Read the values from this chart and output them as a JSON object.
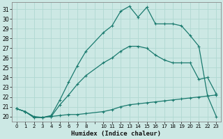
{
  "xlabel": "Humidex (Indice chaleur)",
  "bg_color": "#cce8e4",
  "grid_color": "#b0d8d2",
  "line_color": "#1a7a6e",
  "xlim": [
    -0.5,
    23.5
  ],
  "ylim": [
    19.5,
    31.7
  ],
  "yticks": [
    20,
    21,
    22,
    23,
    24,
    25,
    26,
    27,
    28,
    29,
    30,
    31
  ],
  "xtick_positions": [
    0,
    1,
    2,
    3,
    4,
    5,
    6,
    7,
    8,
    9,
    10,
    11,
    12,
    13,
    14,
    15,
    16,
    17,
    18,
    19,
    20,
    21,
    22,
    23
  ],
  "xtick_labels": [
    "0",
    "1",
    "2",
    "3",
    "4",
    "5",
    "6",
    "7",
    "8",
    "",
    "10",
    "11",
    "12",
    "13",
    "14",
    "15",
    "16",
    "17",
    "18",
    "19",
    "20",
    "21",
    "22",
    "23"
  ],
  "line1_x": [
    0,
    1,
    2,
    3,
    4,
    5,
    6,
    7,
    8,
    10,
    11,
    12,
    13,
    14,
    15,
    16,
    17,
    18,
    19,
    20,
    21,
    22,
    23
  ],
  "line1_y": [
    20.8,
    20.5,
    20.0,
    19.9,
    20.0,
    20.1,
    20.2,
    20.2,
    20.3,
    20.5,
    20.7,
    21.0,
    21.2,
    21.3,
    21.4,
    21.5,
    21.6,
    21.7,
    21.8,
    21.9,
    22.0,
    22.1,
    22.2
  ],
  "line2_x": [
    0,
    1,
    2,
    3,
    4,
    5,
    6,
    7,
    8,
    10,
    11,
    12,
    13,
    14,
    15,
    16,
    17,
    18,
    19,
    20,
    21,
    22,
    23
  ],
  "line2_y": [
    20.8,
    20.5,
    19.9,
    19.9,
    20.0,
    21.2,
    22.2,
    23.3,
    24.2,
    25.5,
    26.0,
    26.7,
    27.2,
    27.2,
    27.0,
    26.3,
    25.8,
    25.5,
    25.5,
    25.5,
    23.8,
    24.0,
    22.3
  ],
  "line3_x": [
    0,
    1,
    2,
    3,
    4,
    5,
    6,
    7,
    8,
    10,
    11,
    12,
    13,
    14,
    15,
    16,
    17,
    18,
    19,
    20,
    21,
    22,
    23
  ],
  "line3_y": [
    20.8,
    20.5,
    19.9,
    19.9,
    20.1,
    21.7,
    23.5,
    25.2,
    26.7,
    28.6,
    29.3,
    30.8,
    31.3,
    30.2,
    31.2,
    29.5,
    29.5,
    29.5,
    29.3,
    28.3,
    27.2,
    22.1,
    20.0
  ],
  "markersize": 3.5,
  "linewidth": 0.9
}
